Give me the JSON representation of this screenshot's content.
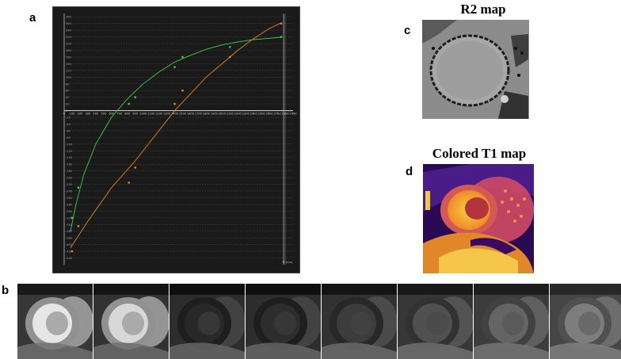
{
  "panels": {
    "a_label": "a",
    "b_label": "b",
    "c_label": "c",
    "d_label": "d",
    "c_title": "R2 map",
    "d_title": "Colored T1 map"
  },
  "chart_data": {
    "type": "scatter",
    "title": "",
    "xlabel": "",
    "ylabel": "",
    "xlim": [
      0,
      2900
    ],
    "ylim": [
      -460,
      290
    ],
    "unit_label": "TI (ms)",
    "grid": true,
    "x_ticks": [
      0,
      100,
      200,
      300,
      400,
      500,
      600,
      700,
      800,
      900,
      1000,
      1100,
      1200,
      1300,
      1400,
      1500,
      1600,
      1700,
      1800,
      1900,
      2000,
      2100,
      2200,
      2300,
      2400,
      2500,
      2600,
      2700,
      2800,
      2900
    ],
    "y_ticks": [
      280,
      260,
      240,
      220,
      200,
      180,
      160,
      140,
      120,
      100,
      80,
      60,
      40,
      20,
      0,
      -20,
      -40,
      -60,
      -80,
      -100,
      -120,
      -140,
      -160,
      -180,
      -200,
      -220,
      -240,
      -260,
      -280,
      -300,
      -320,
      -340,
      -360,
      -380,
      -400,
      -420,
      -440
    ],
    "series": [
      {
        "color": "#3fcf3f",
        "points": [
          [
            100,
            -320
          ],
          [
            180,
            -230
          ],
          [
            820,
            20
          ],
          [
            900,
            40
          ],
          [
            1400,
            130
          ],
          [
            1500,
            160
          ],
          [
            2100,
            190
          ],
          [
            2750,
            220
          ]
        ],
        "curve": [
          [
            80,
            -360
          ],
          [
            150,
            -280
          ],
          [
            250,
            -190
          ],
          [
            400,
            -100
          ],
          [
            600,
            -20
          ],
          [
            800,
            35
          ],
          [
            1000,
            80
          ],
          [
            1200,
            115
          ],
          [
            1400,
            145
          ],
          [
            1600,
            165
          ],
          [
            1800,
            183
          ],
          [
            2000,
            196
          ],
          [
            2200,
            205
          ],
          [
            2400,
            212
          ],
          [
            2600,
            216
          ],
          [
            2750,
            219
          ]
        ]
      },
      {
        "color": "#e08a1c",
        "points": [
          [
            100,
            -420
          ],
          [
            180,
            -345
          ],
          [
            820,
            -215
          ],
          [
            900,
            -170
          ],
          [
            1400,
            20
          ],
          [
            1500,
            60
          ],
          [
            2100,
            160
          ],
          [
            2750,
            260
          ]
        ],
        "curve": [
          [
            80,
            -410
          ],
          [
            300,
            -330
          ],
          [
            600,
            -230
          ],
          [
            900,
            -150
          ],
          [
            1200,
            -60
          ],
          [
            1400,
            0
          ],
          [
            1600,
            50
          ],
          [
            1800,
            100
          ],
          [
            2000,
            140
          ],
          [
            2200,
            180
          ],
          [
            2400,
            215
          ],
          [
            2600,
            245
          ],
          [
            2750,
            262
          ]
        ]
      }
    ]
  },
  "strip": {
    "count": 8,
    "blood_brightness": [
      230,
      215,
      40,
      45,
      60,
      80,
      100,
      125
    ],
    "myo_brightness": [
      170,
      170,
      55,
      55,
      65,
      75,
      90,
      105
    ],
    "bg_brightness": [
      55,
      50,
      45,
      45,
      50,
      55,
      60,
      70
    ]
  }
}
